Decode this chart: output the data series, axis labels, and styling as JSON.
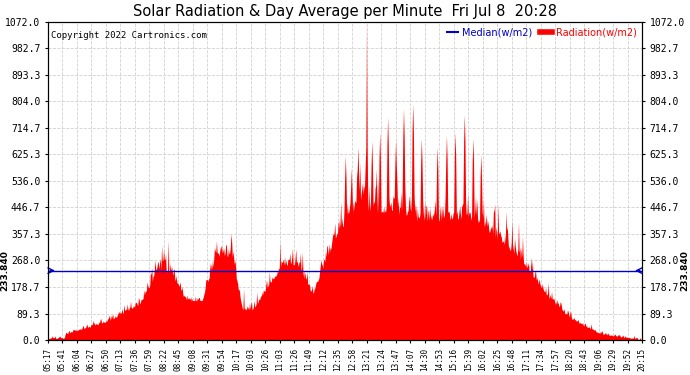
{
  "title": "Solar Radiation & Day Average per Minute  Fri Jul 8  20:28",
  "copyright": "Copyright 2022 Cartronics.com",
  "legend_median": "Median(w/m2)",
  "legend_radiation": "Radiation(w/m2)",
  "median_value": 233.84,
  "ymin": 0.0,
  "ymax": 1072.0,
  "yticks": [
    0.0,
    89.3,
    178.7,
    268.0,
    357.3,
    446.7,
    536.0,
    625.3,
    714.7,
    804.0,
    893.3,
    982.7,
    1072.0
  ],
  "ytick_labels": [
    "0.0",
    "89.3",
    "178.7",
    "268.0",
    "357.3",
    "446.7",
    "536.0",
    "625.3",
    "714.7",
    "804.0",
    "893.3",
    "982.7",
    "1072.0"
  ],
  "background_color": "#ffffff",
  "fill_color": "#ff0000",
  "median_line_color": "#0000cc",
  "grid_color": "#cccccc",
  "title_color": "#000000",
  "copyright_color": "#000000",
  "median_label_color": "#0000cc",
  "radiation_label_color": "#ff0000",
  "left_median_label": "233.840",
  "right_median_label": "233.840",
  "xtick_labels": [
    "05:17",
    "05:41",
    "06:04",
    "06:27",
    "06:50",
    "07:13",
    "07:36",
    "07:59",
    "08:22",
    "08:45",
    "09:08",
    "09:31",
    "09:54",
    "10:17",
    "10:03",
    "10:26",
    "11:03",
    "11:26",
    "11:49",
    "12:12",
    "12:35",
    "12:58",
    "13:21",
    "13:24",
    "13:47",
    "14:07",
    "14:30",
    "14:53",
    "15:16",
    "15:39",
    "16:02",
    "16:25",
    "16:48",
    "17:11",
    "17:34",
    "17:57",
    "18:20",
    "18:43",
    "19:06",
    "19:29",
    "19:52",
    "20:15"
  ],
  "num_points": 900,
  "figwidth": 6.9,
  "figheight": 3.75,
  "dpi": 100
}
